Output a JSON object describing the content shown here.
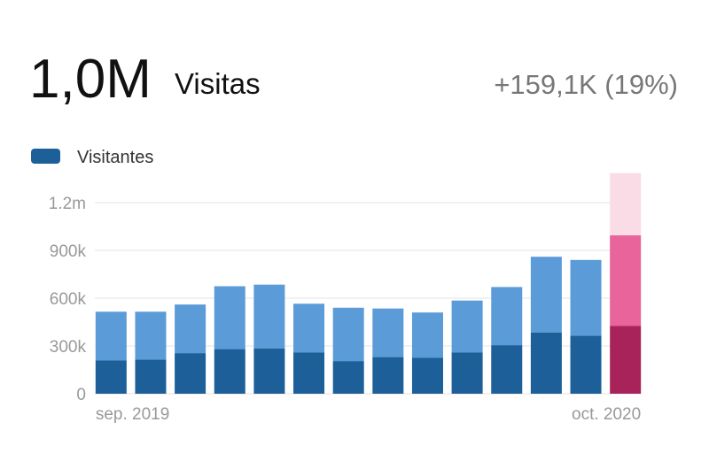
{
  "chart_data": {
    "type": "stacked_bar",
    "headline": {
      "value": "1,0M",
      "label": "Visitas",
      "change": "+159,1K (19%)"
    },
    "categories": [
      "sep. 2019",
      null,
      null,
      null,
      null,
      null,
      null,
      null,
      null,
      null,
      null,
      null,
      null,
      "oct. 2020"
    ],
    "series": [
      {
        "name": "Visitantes",
        "color": "#1c5f99",
        "colors": [
          "#1c5f99",
          "#1c5f99",
          "#1c5f99",
          "#1c5f99",
          "#1c5f99",
          "#1c5f99",
          "#1c5f99",
          "#1c5f99",
          "#1c5f99",
          "#1c5f99",
          "#1c5f99",
          "#1c5f99",
          "#1c5f99",
          "#a8235a"
        ],
        "values": [
          210000,
          215000,
          255000,
          280000,
          285000,
          260000,
          205000,
          230000,
          225000,
          260000,
          305000,
          385000,
          365000,
          425000
        ]
      },
      {
        "color": "#5b9bd8",
        "colors": [
          "#5b9bd8",
          "#5b9bd8",
          "#5b9bd8",
          "#5b9bd8",
          "#5b9bd8",
          "#5b9bd8",
          "#5b9bd8",
          "#5b9bd8",
          "#5b9bd8",
          "#5b9bd8",
          "#5b9bd8",
          "#5b9bd8",
          "#5b9bd8",
          "#e8649a"
        ],
        "values": [
          305000,
          300000,
          305000,
          395000,
          400000,
          305000,
          335000,
          305000,
          285000,
          325000,
          365000,
          475000,
          475000,
          570000
        ]
      },
      {
        "color": "#f9dce6",
        "values": [
          null,
          null,
          null,
          null,
          null,
          null,
          null,
          null,
          null,
          null,
          null,
          null,
          null,
          390000
        ]
      }
    ],
    "ylim": [
      0,
      1400000
    ],
    "yticks": [
      0,
      {
        "value": 300000,
        "label": "300k"
      },
      {
        "value": 600000,
        "label": "600k"
      },
      {
        "value": 900000,
        "label": "900k"
      },
      {
        "value": 1200000,
        "label": "1.2m"
      }
    ],
    "grid": true
  }
}
